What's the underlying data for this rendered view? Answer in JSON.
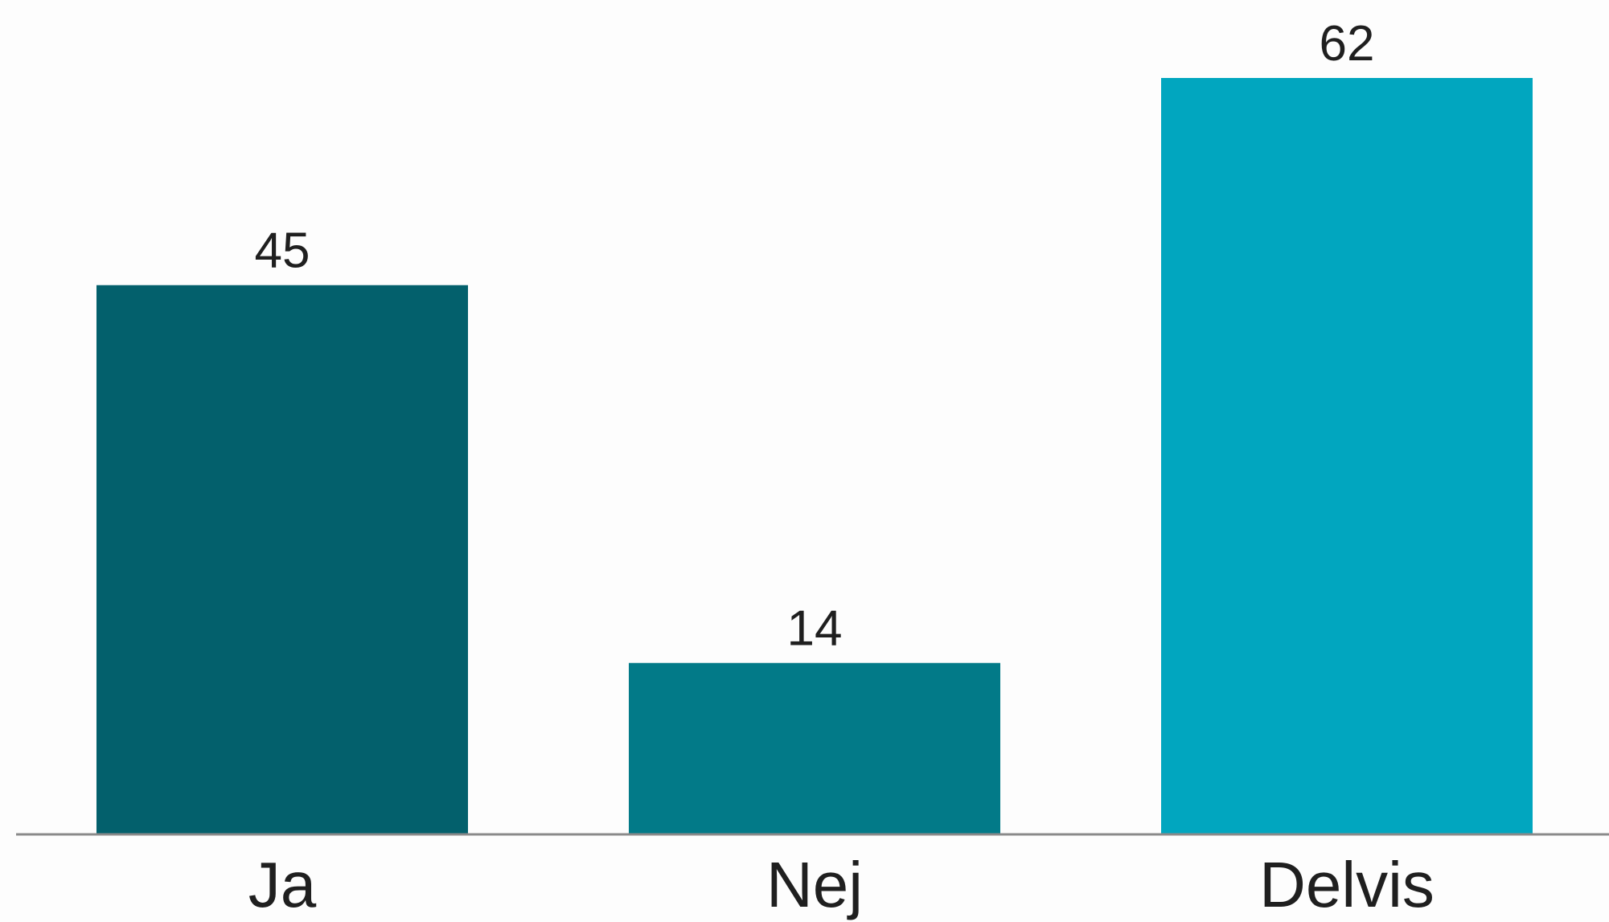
{
  "chart_data": {
    "type": "bar",
    "categories": [
      "Ja",
      "Nej",
      "Delvis"
    ],
    "values": [
      45,
      14,
      62
    ],
    "colors": [
      "#03606c",
      "#027a88",
      "#01a6bf"
    ],
    "axis_color": "#8a8a8a",
    "ylim": [
      0,
      62
    ],
    "grid": false,
    "legend": "none",
    "data_labels": [
      "45",
      "14",
      "62"
    ]
  }
}
